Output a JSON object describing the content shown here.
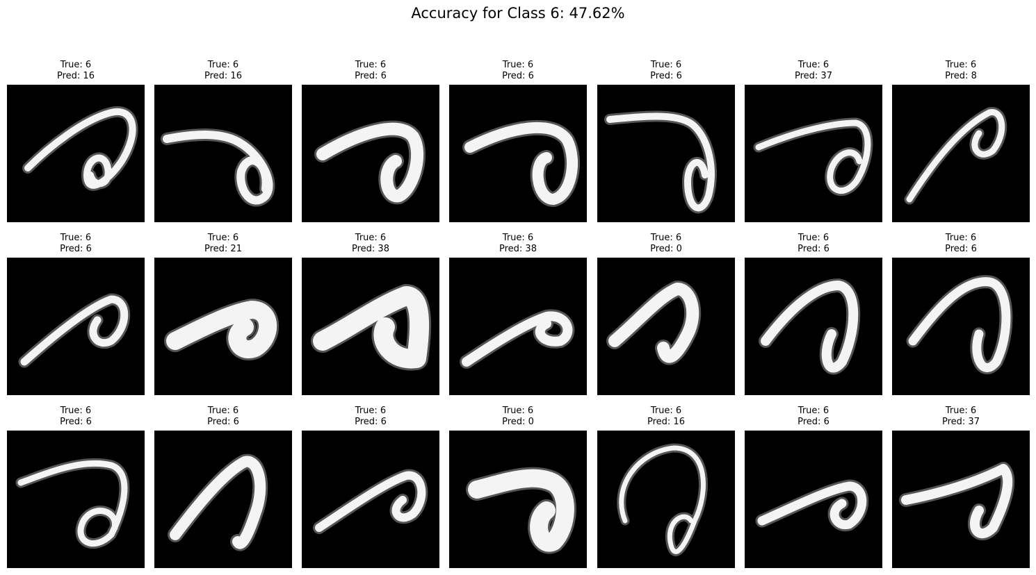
{
  "chart_data": {
    "type": "image_grid",
    "title": "Accuracy for Class 6: 47.62%",
    "rows": 3,
    "cols": 7,
    "true_prefix": "True: ",
    "pred_prefix": "Pred: ",
    "panels": [
      {
        "true": 6,
        "pred": 16
      },
      {
        "true": 6,
        "pred": 16
      },
      {
        "true": 6,
        "pred": 6
      },
      {
        "true": 6,
        "pred": 6
      },
      {
        "true": 6,
        "pred": 6
      },
      {
        "true": 6,
        "pred": 37
      },
      {
        "true": 6,
        "pred": 8
      },
      {
        "true": 6,
        "pred": 6
      },
      {
        "true": 6,
        "pred": 21
      },
      {
        "true": 6,
        "pred": 38
      },
      {
        "true": 6,
        "pred": 38
      },
      {
        "true": 6,
        "pred": 0
      },
      {
        "true": 6,
        "pred": 6
      },
      {
        "true": 6,
        "pred": 6
      },
      {
        "true": 6,
        "pred": 6
      },
      {
        "true": 6,
        "pred": 6
      },
      {
        "true": 6,
        "pred": 6
      },
      {
        "true": 6,
        "pred": 0
      },
      {
        "true": 6,
        "pred": 16
      },
      {
        "true": 6,
        "pred": 6
      },
      {
        "true": 6,
        "pred": 37
      }
    ],
    "image_style": "grayscale handwritten digit, white stroke on black background"
  }
}
